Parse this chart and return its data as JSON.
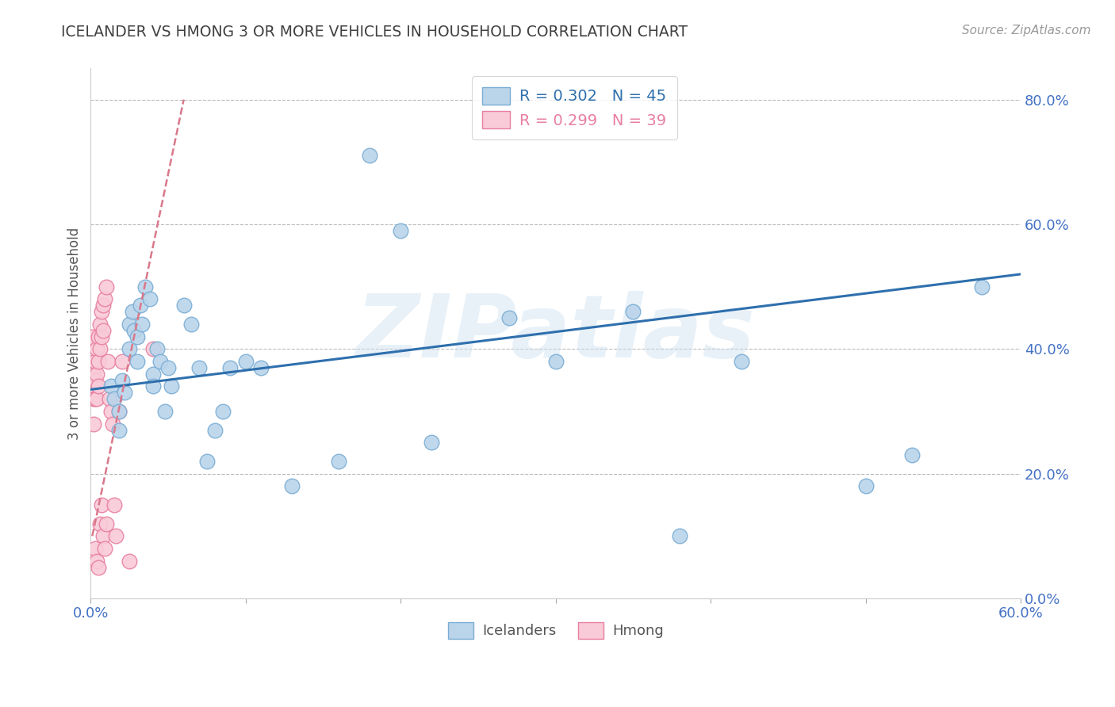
{
  "title": "ICELANDER VS HMONG 3 OR MORE VEHICLES IN HOUSEHOLD CORRELATION CHART",
  "source": "Source: ZipAtlas.com",
  "ylabel_label": "3 or more Vehicles in Household",
  "watermark": "ZIPatlas",
  "legend_icelander_r": "R = 0.302",
  "legend_icelander_n": "N = 45",
  "legend_hmong_r": "R = 0.299",
  "legend_hmong_n": "N = 39",
  "xmin": 0.0,
  "xmax": 0.6,
  "ymin": 0.0,
  "ymax": 0.85,
  "icelander_color": "#bad4ea",
  "icelander_edge": "#7aadd4",
  "hmong_color": "#f9cad7",
  "hmong_edge": "#e87fa0",
  "trendline_icelander_color": "#2e6fad",
  "trendline_hmong_color": "#d9788a",
  "background_color": "#ffffff",
  "grid_color": "#bbbbbb",
  "tick_label_color": "#4472c4",
  "title_color": "#404040",
  "ytick_values": [
    0.0,
    0.2,
    0.4,
    0.6,
    0.8
  ],
  "ytick_labels": [
    "0.0%",
    "20.0%",
    "40.0%",
    "60.0%",
    "80.0%"
  ],
  "xtick_values": [
    0.0,
    0.1,
    0.2,
    0.3,
    0.4,
    0.5,
    0.6
  ],
  "xtick_labels": [
    "0.0%",
    "",
    "",
    "",
    "",
    "",
    "60.0%"
  ],
  "icelander_x": [
    0.013,
    0.015,
    0.018,
    0.018,
    0.02,
    0.022,
    0.025,
    0.025,
    0.027,
    0.028,
    0.03,
    0.03,
    0.032,
    0.033,
    0.035,
    0.038,
    0.04,
    0.04,
    0.043,
    0.045,
    0.048,
    0.05,
    0.052,
    0.06,
    0.065,
    0.07,
    0.075,
    0.08,
    0.085,
    0.09,
    0.1,
    0.11,
    0.13,
    0.16,
    0.18,
    0.2,
    0.22,
    0.27,
    0.3,
    0.35,
    0.38,
    0.42,
    0.5,
    0.53,
    0.575
  ],
  "icelander_y": [
    0.34,
    0.32,
    0.3,
    0.27,
    0.35,
    0.33,
    0.44,
    0.4,
    0.46,
    0.43,
    0.42,
    0.38,
    0.47,
    0.44,
    0.5,
    0.48,
    0.36,
    0.34,
    0.4,
    0.38,
    0.3,
    0.37,
    0.34,
    0.47,
    0.44,
    0.37,
    0.22,
    0.27,
    0.3,
    0.37,
    0.38,
    0.37,
    0.18,
    0.22,
    0.71,
    0.59,
    0.25,
    0.45,
    0.38,
    0.46,
    0.1,
    0.38,
    0.18,
    0.23,
    0.5
  ],
  "hmong_x": [
    0.001,
    0.002,
    0.002,
    0.002,
    0.003,
    0.003,
    0.003,
    0.003,
    0.004,
    0.004,
    0.004,
    0.004,
    0.005,
    0.005,
    0.005,
    0.005,
    0.006,
    0.006,
    0.006,
    0.007,
    0.007,
    0.007,
    0.008,
    0.008,
    0.008,
    0.009,
    0.009,
    0.01,
    0.01,
    0.011,
    0.012,
    0.013,
    0.014,
    0.015,
    0.016,
    0.018,
    0.02,
    0.025,
    0.04
  ],
  "hmong_y": [
    0.42,
    0.36,
    0.32,
    0.28,
    0.38,
    0.35,
    0.32,
    0.08,
    0.4,
    0.36,
    0.32,
    0.06,
    0.42,
    0.38,
    0.34,
    0.05,
    0.44,
    0.4,
    0.12,
    0.46,
    0.42,
    0.15,
    0.47,
    0.43,
    0.1,
    0.48,
    0.08,
    0.5,
    0.12,
    0.38,
    0.32,
    0.3,
    0.28,
    0.15,
    0.1,
    0.3,
    0.38,
    0.06,
    0.4
  ],
  "trendline_icel_x0": 0.0,
  "trendline_icel_x1": 0.6,
  "trendline_icel_y0": 0.335,
  "trendline_icel_y1": 0.52,
  "trendline_hmong_x0": 0.001,
  "trendline_hmong_x1": 0.06,
  "trendline_hmong_y0": 0.1,
  "trendline_hmong_y1": 0.8
}
